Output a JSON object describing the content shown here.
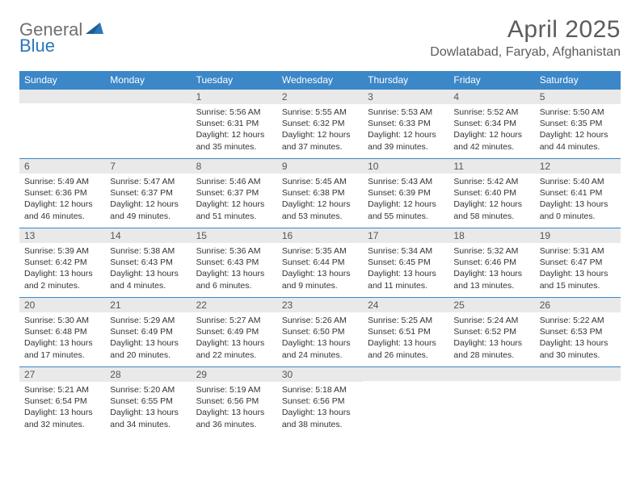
{
  "brand": {
    "part1": "General",
    "part2": "Blue"
  },
  "title": {
    "month_year": "April 2025",
    "location": "Dowlatabad, Faryab, Afghanistan"
  },
  "colors": {
    "header_bg": "#3b87c8",
    "header_text": "#ffffff",
    "daynum_bg": "#e9e9e9",
    "day_border": "#3b87c8",
    "body_text": "#333333",
    "title_text": "#5c5c5c",
    "brand_grey": "#6f6f6f",
    "brand_blue": "#2a77b9"
  },
  "day_labels": [
    "Sunday",
    "Monday",
    "Tuesday",
    "Wednesday",
    "Thursday",
    "Friday",
    "Saturday"
  ],
  "weeks": [
    [
      null,
      null,
      {
        "n": "1",
        "sunrise": "5:56 AM",
        "sunset": "6:31 PM",
        "daylight": "12 hours and 35 minutes."
      },
      {
        "n": "2",
        "sunrise": "5:55 AM",
        "sunset": "6:32 PM",
        "daylight": "12 hours and 37 minutes."
      },
      {
        "n": "3",
        "sunrise": "5:53 AM",
        "sunset": "6:33 PM",
        "daylight": "12 hours and 39 minutes."
      },
      {
        "n": "4",
        "sunrise": "5:52 AM",
        "sunset": "6:34 PM",
        "daylight": "12 hours and 42 minutes."
      },
      {
        "n": "5",
        "sunrise": "5:50 AM",
        "sunset": "6:35 PM",
        "daylight": "12 hours and 44 minutes."
      }
    ],
    [
      {
        "n": "6",
        "sunrise": "5:49 AM",
        "sunset": "6:36 PM",
        "daylight": "12 hours and 46 minutes."
      },
      {
        "n": "7",
        "sunrise": "5:47 AM",
        "sunset": "6:37 PM",
        "daylight": "12 hours and 49 minutes."
      },
      {
        "n": "8",
        "sunrise": "5:46 AM",
        "sunset": "6:37 PM",
        "daylight": "12 hours and 51 minutes."
      },
      {
        "n": "9",
        "sunrise": "5:45 AM",
        "sunset": "6:38 PM",
        "daylight": "12 hours and 53 minutes."
      },
      {
        "n": "10",
        "sunrise": "5:43 AM",
        "sunset": "6:39 PM",
        "daylight": "12 hours and 55 minutes."
      },
      {
        "n": "11",
        "sunrise": "5:42 AM",
        "sunset": "6:40 PM",
        "daylight": "12 hours and 58 minutes."
      },
      {
        "n": "12",
        "sunrise": "5:40 AM",
        "sunset": "6:41 PM",
        "daylight": "13 hours and 0 minutes."
      }
    ],
    [
      {
        "n": "13",
        "sunrise": "5:39 AM",
        "sunset": "6:42 PM",
        "daylight": "13 hours and 2 minutes."
      },
      {
        "n": "14",
        "sunrise": "5:38 AM",
        "sunset": "6:43 PM",
        "daylight": "13 hours and 4 minutes."
      },
      {
        "n": "15",
        "sunrise": "5:36 AM",
        "sunset": "6:43 PM",
        "daylight": "13 hours and 6 minutes."
      },
      {
        "n": "16",
        "sunrise": "5:35 AM",
        "sunset": "6:44 PM",
        "daylight": "13 hours and 9 minutes."
      },
      {
        "n": "17",
        "sunrise": "5:34 AM",
        "sunset": "6:45 PM",
        "daylight": "13 hours and 11 minutes."
      },
      {
        "n": "18",
        "sunrise": "5:32 AM",
        "sunset": "6:46 PM",
        "daylight": "13 hours and 13 minutes."
      },
      {
        "n": "19",
        "sunrise": "5:31 AM",
        "sunset": "6:47 PM",
        "daylight": "13 hours and 15 minutes."
      }
    ],
    [
      {
        "n": "20",
        "sunrise": "5:30 AM",
        "sunset": "6:48 PM",
        "daylight": "13 hours and 17 minutes."
      },
      {
        "n": "21",
        "sunrise": "5:29 AM",
        "sunset": "6:49 PM",
        "daylight": "13 hours and 20 minutes."
      },
      {
        "n": "22",
        "sunrise": "5:27 AM",
        "sunset": "6:49 PM",
        "daylight": "13 hours and 22 minutes."
      },
      {
        "n": "23",
        "sunrise": "5:26 AM",
        "sunset": "6:50 PM",
        "daylight": "13 hours and 24 minutes."
      },
      {
        "n": "24",
        "sunrise": "5:25 AM",
        "sunset": "6:51 PM",
        "daylight": "13 hours and 26 minutes."
      },
      {
        "n": "25",
        "sunrise": "5:24 AM",
        "sunset": "6:52 PM",
        "daylight": "13 hours and 28 minutes."
      },
      {
        "n": "26",
        "sunrise": "5:22 AM",
        "sunset": "6:53 PM",
        "daylight": "13 hours and 30 minutes."
      }
    ],
    [
      {
        "n": "27",
        "sunrise": "5:21 AM",
        "sunset": "6:54 PM",
        "daylight": "13 hours and 32 minutes."
      },
      {
        "n": "28",
        "sunrise": "5:20 AM",
        "sunset": "6:55 PM",
        "daylight": "13 hours and 34 minutes."
      },
      {
        "n": "29",
        "sunrise": "5:19 AM",
        "sunset": "6:56 PM",
        "daylight": "13 hours and 36 minutes."
      },
      {
        "n": "30",
        "sunrise": "5:18 AM",
        "sunset": "6:56 PM",
        "daylight": "13 hours and 38 minutes."
      },
      null,
      null,
      null
    ]
  ],
  "labels": {
    "sunrise": "Sunrise:",
    "sunset": "Sunset:",
    "daylight": "Daylight:"
  }
}
